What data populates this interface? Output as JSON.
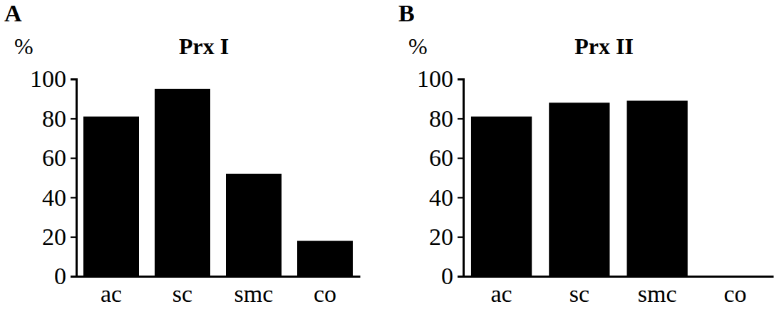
{
  "chart_data": [
    {
      "type": "bar",
      "title": "Prx I",
      "annotations": [
        "A"
      ],
      "y_label": "%",
      "categories": [
        "ac",
        "sc",
        "smc",
        "co"
      ],
      "values": [
        81,
        95,
        52,
        18
      ],
      "color": "#000000",
      "ylim": [
        0,
        100
      ],
      "yticks": [
        0,
        20,
        40,
        60,
        80,
        100
      ],
      "grid": false
    },
    {
      "type": "bar",
      "title": "Prx II",
      "annotations": [
        "B"
      ],
      "y_label": "%",
      "categories": [
        "ac",
        "sc",
        "smc",
        "co"
      ],
      "values": [
        81,
        88,
        89,
        0
      ],
      "color": "#000000",
      "ylim": [
        0,
        100
      ],
      "yticks": [
        0,
        20,
        40,
        60,
        80,
        100
      ],
      "grid": false
    }
  ]
}
